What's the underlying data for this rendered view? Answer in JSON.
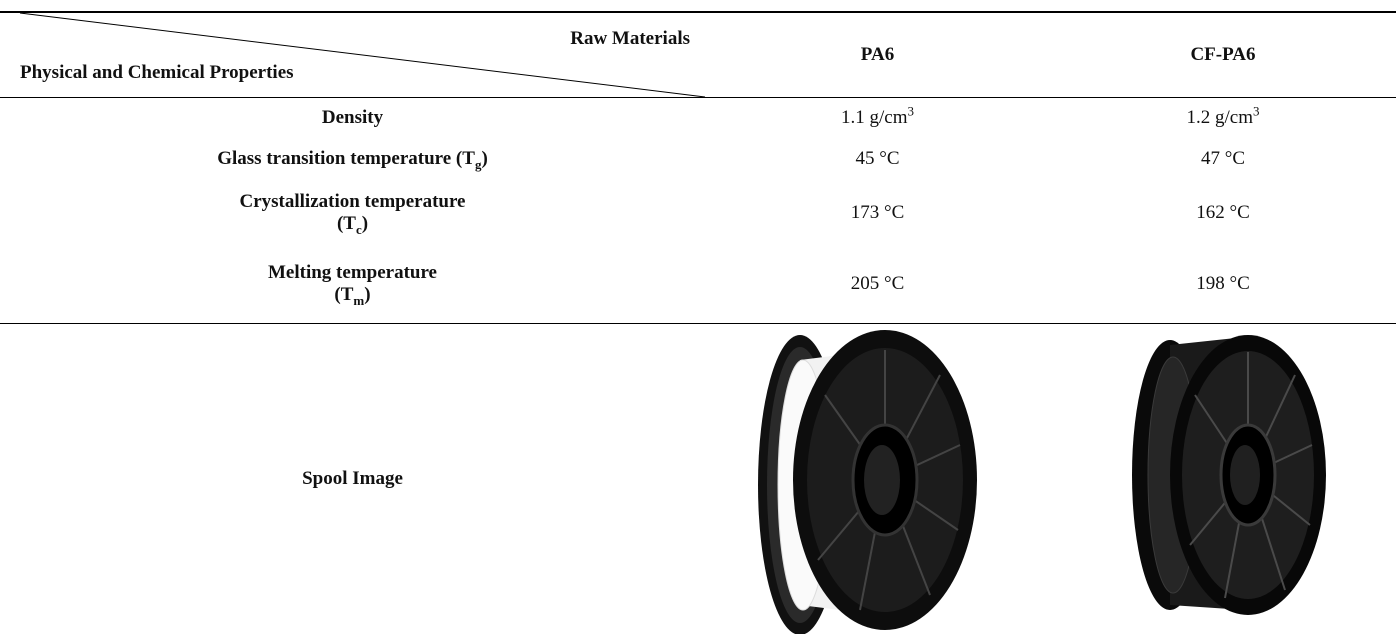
{
  "table": {
    "corner": {
      "columns_label": "Raw Materials",
      "rows_label": "Physical and Chemical Properties"
    },
    "columns": [
      "PA6",
      "CF-PA6"
    ],
    "rows": [
      {
        "property": [
          [
            {
              "t": "Density"
            }
          ]
        ],
        "values": [
          [
            [
              {
                "t": "1.1 g/cm"
              },
              {
                "sup": "3"
              }
            ]
          ],
          [
            [
              {
                "t": "1.2 g/cm"
              },
              {
                "sup": "3"
              }
            ]
          ]
        ]
      },
      {
        "property": [
          [
            {
              "t": "Glass transition temperature (T"
            },
            {
              "sub": "g"
            },
            {
              "t": ")"
            }
          ]
        ],
        "values": [
          [
            [
              {
                "t": "45 °C"
              }
            ]
          ],
          [
            [
              {
                "t": "47 °C"
              }
            ]
          ]
        ]
      },
      {
        "property": [
          [
            {
              "t": "Crystallization temperature"
            }
          ],
          [
            {
              "t": "(T"
            },
            {
              "sub": "c"
            },
            {
              "t": ")"
            }
          ]
        ],
        "values": [
          [
            [
              {
                "t": "173 °C"
              }
            ]
          ],
          [
            [
              {
                "t": "162 °C"
              }
            ]
          ]
        ]
      },
      {
        "property": [
          [
            {
              "t": "Melting temperature"
            }
          ],
          [
            {
              "t": "(T"
            },
            {
              "sub": "m"
            },
            {
              "t": ")"
            }
          ]
        ],
        "values": [
          [
            [
              {
                "t": "205 °C"
              }
            ]
          ],
          [
            [
              {
                "t": "198 °C"
              }
            ]
          ]
        ]
      },
      {
        "property": [
          [
            {
              "t": "Spool Image"
            }
          ]
        ]
      }
    ]
  }
}
